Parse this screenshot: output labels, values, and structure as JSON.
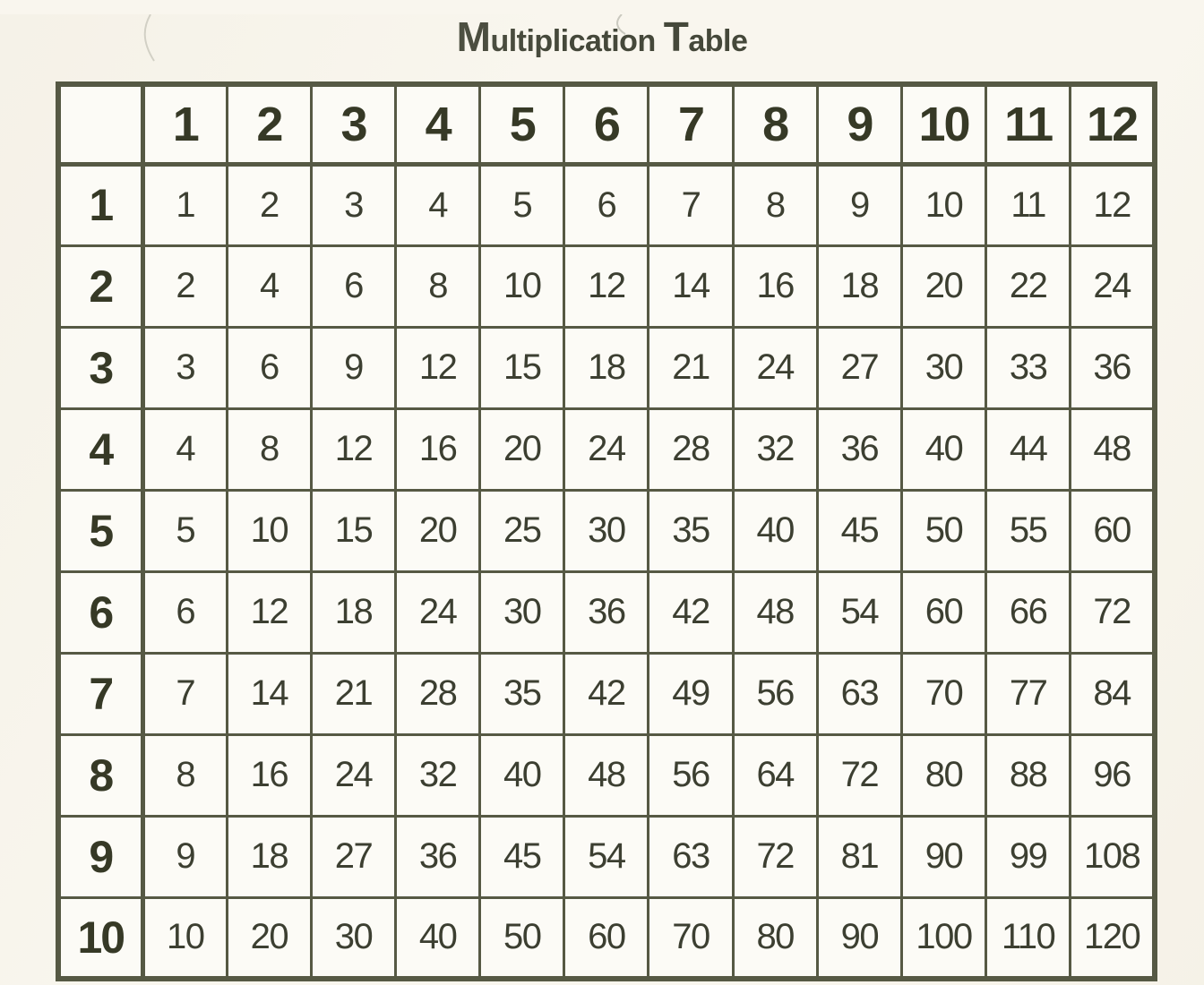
{
  "title": {
    "m_cap": "M",
    "m_rest": "ultiplication",
    "t_cap": "T",
    "t_rest": "able",
    "full": "Multiplication Table"
  },
  "colors": {
    "page_bg": "#f9f6ee",
    "cell_bg": "#fcfbf6",
    "grid": "#565944",
    "text": "#3c3f31",
    "header_text": "#363926",
    "title": "#45483a"
  },
  "table": {
    "corner_label": "",
    "column_headers": [
      "1",
      "2",
      "3",
      "4",
      "5",
      "6",
      "7",
      "8",
      "9",
      "10",
      "11",
      "12"
    ],
    "row_headers": [
      "1",
      "2",
      "3",
      "4",
      "5",
      "6",
      "7",
      "8",
      "9",
      "10"
    ],
    "rows": [
      [
        1,
        2,
        3,
        4,
        5,
        6,
        7,
        8,
        9,
        10,
        11,
        12
      ],
      [
        2,
        4,
        6,
        8,
        10,
        12,
        14,
        16,
        18,
        20,
        22,
        24
      ],
      [
        3,
        6,
        9,
        12,
        15,
        18,
        21,
        24,
        27,
        30,
        33,
        36
      ],
      [
        4,
        8,
        12,
        16,
        20,
        24,
        28,
        32,
        36,
        40,
        44,
        48
      ],
      [
        5,
        10,
        15,
        20,
        25,
        30,
        35,
        40,
        45,
        50,
        55,
        60
      ],
      [
        6,
        12,
        18,
        24,
        30,
        36,
        42,
        48,
        54,
        60,
        66,
        72
      ],
      [
        7,
        14,
        21,
        28,
        35,
        42,
        49,
        56,
        63,
        70,
        77,
        84
      ],
      [
        8,
        16,
        24,
        32,
        40,
        48,
        56,
        64,
        72,
        80,
        88,
        96
      ],
      [
        9,
        18,
        27,
        36,
        45,
        54,
        63,
        72,
        81,
        90,
        99,
        108
      ],
      [
        10,
        20,
        30,
        40,
        50,
        60,
        70,
        80,
        90,
        100,
        110,
        120
      ]
    ]
  }
}
